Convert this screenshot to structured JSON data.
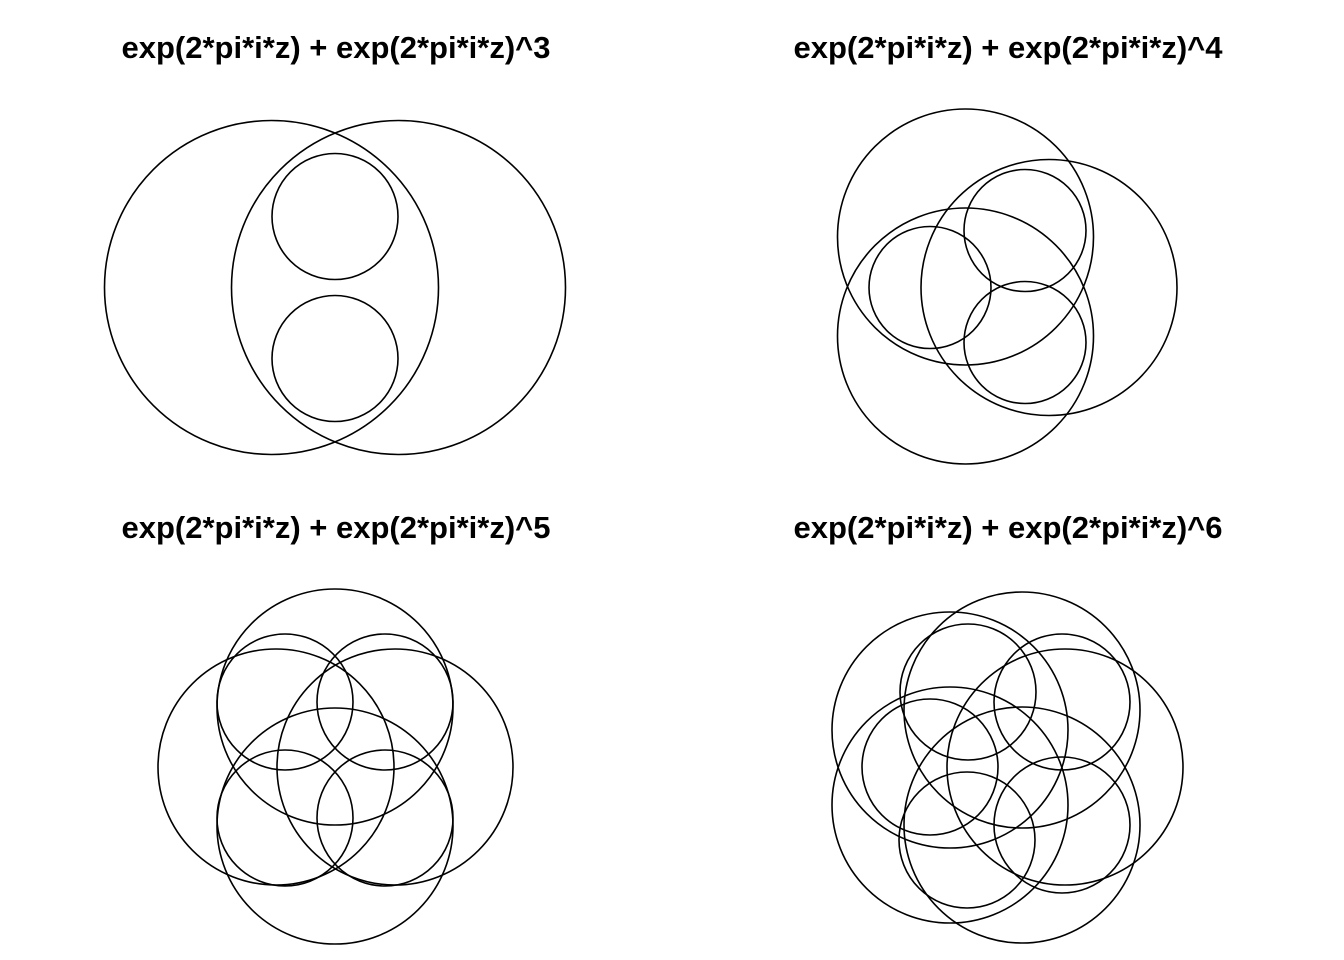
{
  "figure": {
    "background": "#ffffff",
    "stroke_color": "#000000",
    "panels": [
      {
        "title": "exp(2*pi*i*z) + exp(2*pi*i*z)^3"
      },
      {
        "title": "exp(2*pi*i*z) + exp(2*pi*i*z)^4"
      },
      {
        "title": "exp(2*pi*i*z) + exp(2*pi*i*z)^5"
      },
      {
        "title": "exp(2*pi*i*z) + exp(2*pi*i*z)^6"
      }
    ]
  }
}
